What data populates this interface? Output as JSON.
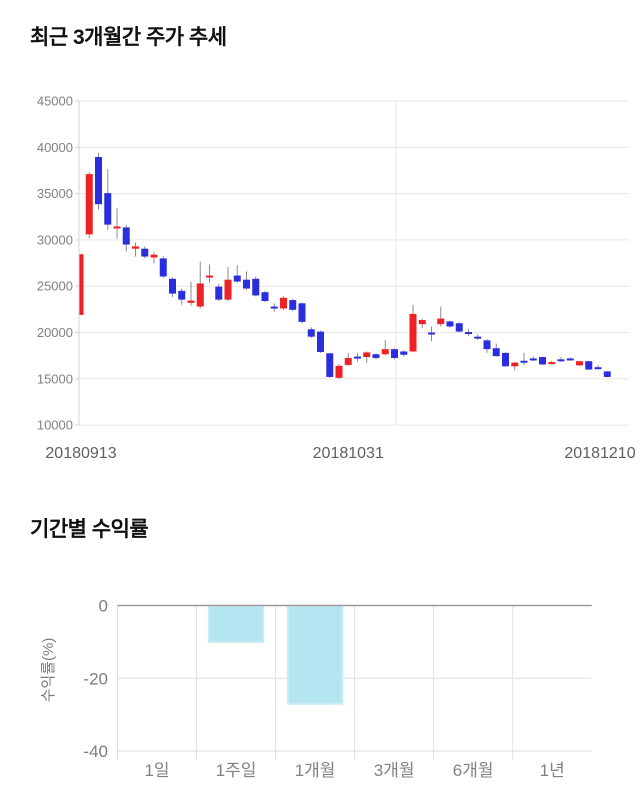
{
  "theme": {
    "up_color": "#ee2125",
    "down_color": "#2a2edc",
    "wick_color": "#8c8c8c",
    "grid_color": "#e7e7e7",
    "axis_line_color": "#d4d4d4",
    "price_ytick_color": "#808080",
    "price_xtick_color": "#5f5f5f",
    "bar_fill": "#b4e6f1",
    "bar_border": "#c9edf5",
    "bar_zero_line": "#9a9a9a",
    "bar_grid_color": "#dedede",
    "bar_separator_color": "#e3e3e3",
    "bar_tick_color": "#7d7d7d",
    "bar_category_color": "#828282"
  },
  "chart_data": [
    {
      "type": "candlestick",
      "title": "최근 3개월간 주가 추세",
      "ylabel": "",
      "xlabel": "",
      "ylim": [
        10000,
        45000
      ],
      "y_ticks": [
        45000,
        40000,
        35000,
        30000,
        25000,
        20000,
        15000,
        10000
      ],
      "x_tick_labels": [
        "20180913",
        "20181031",
        "20181210"
      ],
      "x_tick_indices": [
        0,
        29,
        57
      ],
      "grid": "horizontal",
      "candles_ohlc": [
        [
          21900,
          28450,
          21900,
          28450
        ],
        [
          30600,
          37300,
          30150,
          37100
        ],
        [
          38950,
          39400,
          33300,
          33850
        ],
        [
          35050,
          37650,
          31100,
          31650
        ],
        [
          31250,
          33400,
          30150,
          31450
        ],
        [
          31350,
          31600,
          28750,
          29500
        ],
        [
          29050,
          29700,
          28200,
          29300
        ],
        [
          29050,
          29300,
          28000,
          28200
        ],
        [
          28100,
          28650,
          27450,
          28400
        ],
        [
          28000,
          28250,
          25900,
          26050
        ],
        [
          25800,
          25950,
          23850,
          24200
        ],
        [
          24500,
          24750,
          23000,
          23550
        ],
        [
          23200,
          25500,
          22900,
          23450
        ],
        [
          22800,
          27650,
          22600,
          25300
        ],
        [
          25950,
          27350,
          25400,
          26150
        ],
        [
          24950,
          25250,
          23400,
          23550
        ],
        [
          23550,
          27100,
          23400,
          25700
        ],
        [
          26150,
          27250,
          25400,
          25500
        ],
        [
          25700,
          26600,
          24600,
          24750
        ],
        [
          25800,
          26050,
          23900,
          24000
        ],
        [
          24350,
          24500,
          23300,
          23400
        ],
        [
          22800,
          23150,
          22250,
          22750
        ],
        [
          22600,
          23900,
          22450,
          23750
        ],
        [
          23500,
          23650,
          22300,
          22450
        ],
        [
          23150,
          23250,
          21000,
          21150
        ],
        [
          20350,
          20550,
          19400,
          19550
        ],
        [
          20100,
          20200,
          17800,
          17900
        ],
        [
          17750,
          17800,
          15100,
          15200
        ],
        [
          15100,
          16600,
          15000,
          16400
        ],
        [
          16500,
          17800,
          16400,
          17250
        ],
        [
          17400,
          17800,
          16850,
          17300
        ],
        [
          17350,
          17950,
          16700,
          17850
        ],
        [
          17650,
          17750,
          17100,
          17250
        ],
        [
          17650,
          19200,
          17550,
          18200
        ],
        [
          18200,
          18300,
          17100,
          17250
        ],
        [
          17950,
          18050,
          17400,
          17600
        ],
        [
          17950,
          23000,
          17850,
          22000
        ],
        [
          20900,
          21500,
          20450,
          21350
        ],
        [
          20000,
          20650,
          19050,
          19900
        ],
        [
          20900,
          22800,
          20650,
          21500
        ],
        [
          21200,
          21300,
          20500,
          20650
        ],
        [
          21000,
          21100,
          20000,
          20100
        ],
        [
          20050,
          20400,
          19600,
          19950
        ],
        [
          19550,
          19800,
          19200,
          19400
        ],
        [
          19150,
          19300,
          17800,
          18200
        ],
        [
          18300,
          18800,
          17400,
          17450
        ],
        [
          17800,
          17850,
          16300,
          16350
        ],
        [
          16350,
          16800,
          15900,
          16750
        ],
        [
          16950,
          17800,
          16500,
          16900
        ],
        [
          17200,
          17450,
          16900,
          17100
        ],
        [
          17350,
          17400,
          16500,
          16550
        ],
        [
          16700,
          16950,
          16550,
          16800
        ],
        [
          17100,
          17350,
          16850,
          17050
        ],
        [
          17200,
          17300,
          16950,
          17100
        ],
        [
          16450,
          16950,
          16400,
          16900
        ],
        [
          16900,
          16950,
          15950,
          16000
        ],
        [
          16250,
          16500,
          16000,
          16200
        ],
        [
          15800,
          15850,
          15150,
          15200
        ]
      ]
    },
    {
      "type": "bar",
      "title": "기간별 수익률",
      "ylabel": "수익률(%)",
      "xlabel": "",
      "categories": [
        "1일",
        "1주일",
        "1개월",
        "3개월",
        "6개월",
        "1년"
      ],
      "values": [
        0,
        -10,
        -27,
        0,
        0,
        0
      ],
      "ylim": [
        -40,
        0
      ],
      "y_ticks": [
        0,
        -20,
        -40
      ],
      "grid": "on",
      "legend": "none"
    }
  ]
}
